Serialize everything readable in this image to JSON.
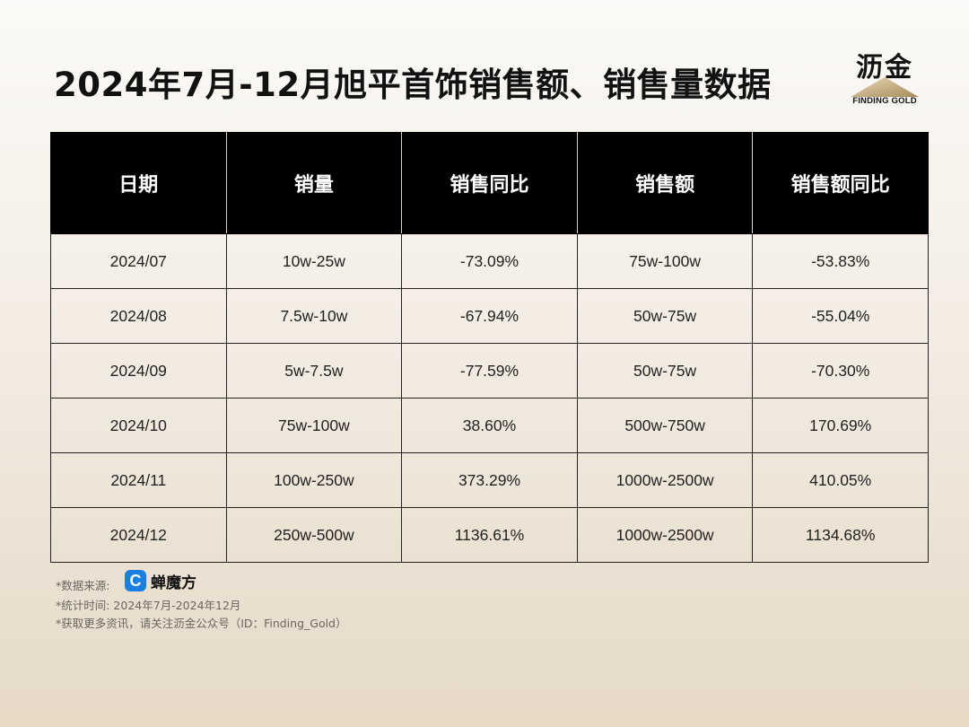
{
  "title": "2024年7月-12月旭平首饰销售额、销售量数据",
  "logo": {
    "cn": "沥金",
    "en": "FINDING GOLD"
  },
  "table": {
    "headers": [
      "日期",
      "销量",
      "销售同比",
      "销售额",
      "销售额同比"
    ],
    "rows": [
      [
        "2024/07",
        "10w-25w",
        "-73.09%",
        "75w-100w",
        "-53.83%"
      ],
      [
        "2024/08",
        "7.5w-10w",
        "-67.94%",
        "50w-75w",
        "-55.04%"
      ],
      [
        "2024/09",
        "5w-7.5w",
        "-77.59%",
        "50w-75w",
        "-70.30%"
      ],
      [
        "2024/10",
        "75w-100w",
        "38.60%",
        "500w-750w",
        "170.69%"
      ],
      [
        "2024/11",
        "100w-250w",
        "373.29%",
        "1000w-2500w",
        "410.05%"
      ],
      [
        "2024/12",
        "250w-500w",
        "1136.61%",
        "1000w-2500w",
        "1134.68%"
      ]
    ]
  },
  "footer": {
    "source_label": "*数据来源:",
    "source_mark": "C",
    "source_name": "蝉魔方",
    "period": "*统计时间:  2024年7月-2024年12月",
    "more_info": "*获取更多资讯，请关注沥金公众号（ID：Finding_Gold）"
  }
}
